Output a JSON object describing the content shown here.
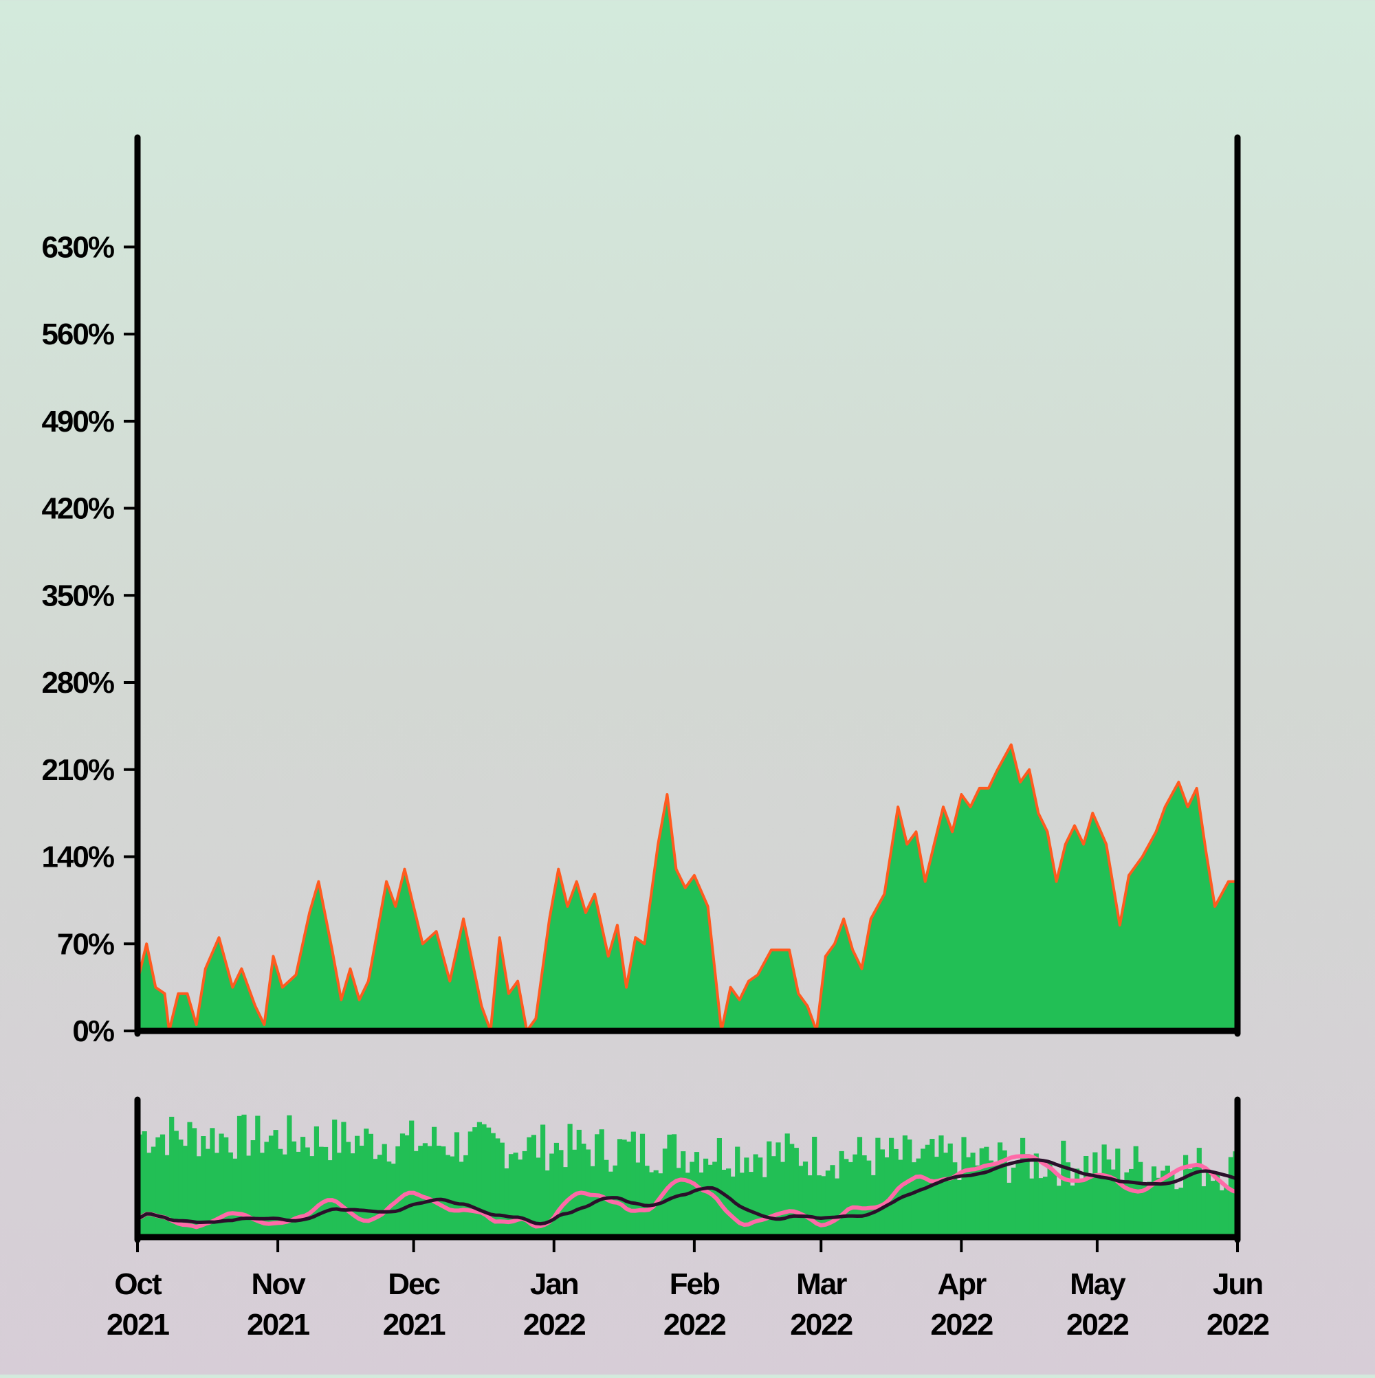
{
  "chart_data": [
    {
      "type": "area",
      "x_start": "2021-10-01",
      "x_end": "2022-06-01",
      "ylim": [
        0,
        700
      ],
      "ytick_values": [
        0,
        70,
        140,
        210,
        280,
        350,
        420,
        490,
        560,
        630
      ],
      "ytick_labels": [
        "0%",
        "70%",
        "140%",
        "210%",
        "280%",
        "350%",
        "420%",
        "490%",
        "560%",
        "630%"
      ],
      "xtick_labels": [
        {
          "month": "Oct",
          "year": "2021",
          "date": "2021-10-01"
        },
        {
          "month": "Nov",
          "year": "2021",
          "date": "2021-11-01"
        },
        {
          "month": "Dec",
          "year": "2021",
          "date": "2021-12-01"
        },
        {
          "month": "Jan",
          "year": "2022",
          "date": "2022-01-01"
        },
        {
          "month": "Feb",
          "year": "2022",
          "date": "2022-02-01"
        },
        {
          "month": "Mar",
          "year": "2022",
          "date": "2022-03-01"
        },
        {
          "month": "Apr",
          "year": "2022",
          "date": "2022-04-01"
        },
        {
          "month": "May",
          "year": "2022",
          "date": "2022-05-01"
        },
        {
          "month": "Jun",
          "year": "2022",
          "date": "2022-06-01"
        }
      ],
      "series": [
        {
          "color": "#22bf55",
          "points": [
            [
              "2021-10-01",
              40
            ],
            [
              "2021-10-03",
              70
            ],
            [
              "2021-10-05",
              35
            ],
            [
              "2021-10-07",
              30
            ],
            [
              "2021-10-08",
              0
            ],
            [
              "2021-10-10",
              30
            ],
            [
              "2021-10-12",
              30
            ],
            [
              "2021-10-14",
              5
            ],
            [
              "2021-10-16",
              50
            ],
            [
              "2021-10-19",
              75
            ],
            [
              "2021-10-22",
              35
            ],
            [
              "2021-10-24",
              50
            ],
            [
              "2021-10-27",
              20
            ],
            [
              "2021-10-29",
              5
            ],
            [
              "2021-10-31",
              60
            ],
            [
              "2021-11-02",
              35
            ],
            [
              "2021-11-05",
              45
            ],
            [
              "2021-11-08",
              95
            ],
            [
              "2021-11-10",
              120
            ],
            [
              "2021-11-13",
              65
            ],
            [
              "2021-11-15",
              25
            ],
            [
              "2021-11-17",
              50
            ],
            [
              "2021-11-19",
              25
            ],
            [
              "2021-11-21",
              40
            ],
            [
              "2021-11-25",
              120
            ],
            [
              "2021-11-27",
              100
            ],
            [
              "2021-11-29",
              130
            ],
            [
              "2021-12-01",
              100
            ],
            [
              "2021-12-03",
              70
            ],
            [
              "2021-12-06",
              80
            ],
            [
              "2021-12-09",
              40
            ],
            [
              "2021-12-12",
              90
            ],
            [
              "2021-12-14",
              55
            ],
            [
              "2021-12-16",
              20
            ],
            [
              "2021-12-18",
              0
            ],
            [
              "2021-12-20",
              75
            ],
            [
              "2021-12-22",
              30
            ],
            [
              "2021-12-24",
              40
            ],
            [
              "2021-12-26",
              0
            ],
            [
              "2021-12-28",
              10
            ],
            [
              "2021-12-31",
              90
            ],
            [
              "2022-01-02",
              130
            ],
            [
              "2022-01-04",
              100
            ],
            [
              "2022-01-06",
              120
            ],
            [
              "2022-01-08",
              95
            ],
            [
              "2022-01-10",
              110
            ],
            [
              "2022-01-13",
              60
            ],
            [
              "2022-01-15",
              85
            ],
            [
              "2022-01-17",
              35
            ],
            [
              "2022-01-19",
              75
            ],
            [
              "2022-01-21",
              70
            ],
            [
              "2022-01-24",
              150
            ],
            [
              "2022-01-26",
              190
            ],
            [
              "2022-01-28",
              130
            ],
            [
              "2022-01-30",
              115
            ],
            [
              "2022-02-01",
              125
            ],
            [
              "2022-02-04",
              100
            ],
            [
              "2022-02-07",
              0
            ],
            [
              "2022-02-09",
              35
            ],
            [
              "2022-02-11",
              25
            ],
            [
              "2022-02-13",
              40
            ],
            [
              "2022-02-15",
              45
            ],
            [
              "2022-02-18",
              65
            ],
            [
              "2022-02-22",
              65
            ],
            [
              "2022-02-24",
              30
            ],
            [
              "2022-02-26",
              20
            ],
            [
              "2022-02-28",
              0
            ],
            [
              "2022-03-02",
              60
            ],
            [
              "2022-03-04",
              70
            ],
            [
              "2022-03-06",
              90
            ],
            [
              "2022-03-08",
              65
            ],
            [
              "2022-03-10",
              50
            ],
            [
              "2022-03-12",
              90
            ],
            [
              "2022-03-15",
              110
            ],
            [
              "2022-03-18",
              180
            ],
            [
              "2022-03-20",
              150
            ],
            [
              "2022-03-22",
              160
            ],
            [
              "2022-03-24",
              120
            ],
            [
              "2022-03-26",
              150
            ],
            [
              "2022-03-28",
              180
            ],
            [
              "2022-03-30",
              160
            ],
            [
              "2022-04-01",
              190
            ],
            [
              "2022-04-03",
              180
            ],
            [
              "2022-04-05",
              195
            ],
            [
              "2022-04-07",
              195
            ],
            [
              "2022-04-09",
              210
            ],
            [
              "2022-04-12",
              230
            ],
            [
              "2022-04-14",
              200
            ],
            [
              "2022-04-16",
              210
            ],
            [
              "2022-04-18",
              175
            ],
            [
              "2022-04-20",
              160
            ],
            [
              "2022-04-22",
              120
            ],
            [
              "2022-04-24",
              150
            ],
            [
              "2022-04-26",
              165
            ],
            [
              "2022-04-28",
              150
            ],
            [
              "2022-04-30",
              175
            ],
            [
              "2022-05-03",
              150
            ],
            [
              "2022-05-06",
              85
            ],
            [
              "2022-05-08",
              125
            ],
            [
              "2022-05-11",
              140
            ],
            [
              "2022-05-14",
              160
            ],
            [
              "2022-05-16",
              180
            ],
            [
              "2022-05-19",
              200
            ],
            [
              "2022-05-21",
              180
            ],
            [
              "2022-05-23",
              195
            ],
            [
              "2022-05-25",
              145
            ],
            [
              "2022-05-27",
              100
            ],
            [
              "2022-05-30",
              120
            ],
            [
              "2022-06-01",
              120
            ]
          ]
        }
      ]
    },
    {
      "type": "bar",
      "x_start": "2021-10-01",
      "x_end": "2022-06-01",
      "series": [
        {
          "kind": "bars",
          "color": "#22bf55"
        },
        {
          "kind": "line",
          "color": "#ff6aa8"
        },
        {
          "kind": "line",
          "color": "#2a0f2a"
        }
      ]
    }
  ]
}
